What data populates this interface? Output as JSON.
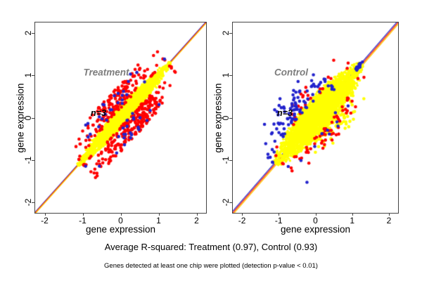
{
  "chart_data": {
    "type": "scatter",
    "caption": "Average R-squared: Treatment (0.97), Control (0.93)",
    "footnote": "Genes detected at least one chip were plotted (detection p-value < 0.01)",
    "colors": {
      "point_yellow": "#FFFF00",
      "point_red": "#FF0000",
      "point_blue": "#2222CC",
      "line_blue": "#3333CC",
      "line_red": "#FF2200",
      "line_yellow": "#FFC800",
      "axis": "#444444",
      "annotation_gray": "#7D7D7D"
    },
    "panels": [
      {
        "name": "Treatment",
        "annotation": "Treatment",
        "n_label": "n=3",
        "n_chips": 3,
        "r_squared": 0.97,
        "xlabel": "gene expression",
        "ylabel": "gene expression",
        "xlim": [
          -2.25,
          2.25
        ],
        "ylim": [
          -2.25,
          2.25
        ],
        "xticks": [
          -2,
          -1,
          0,
          1,
          2
        ],
        "yticks": [
          -2,
          -1,
          0,
          1,
          2
        ],
        "grid": false,
        "identity_lines": [
          {
            "color": "#3333CC",
            "offset": 0.018
          },
          {
            "color": "#FF2200",
            "offset": 0
          },
          {
            "color": "#FFC800",
            "offset": -0.018
          }
        ],
        "series": [
          {
            "name": "pairwise-core",
            "color": "#FFFF00",
            "n": 2600,
            "r": 1.8,
            "mode": "fill",
            "t_mean": 0.1,
            "t_sd": 0.52,
            "t_min": -1.12,
            "t_max": 1.3,
            "w_base": 0.2,
            "w_add": 0.012,
            "perp_cap": 0.45,
            "perp_shift": 0
          },
          {
            "name": "pairwise-outliers-red",
            "color": "#FF0000",
            "n": 430,
            "r": 2.3,
            "mode": "edge",
            "t_mean": 0.05,
            "t_sd": 0.5,
            "t_min": -1.05,
            "t_max": 1.27,
            "w_base": 0.2,
            "w_add": 0.012,
            "edge_gap": 0.75,
            "edge_spread": 0.3,
            "side_neg": 0.55,
            "perp_cap": 0.58,
            "perp_shift": 0
          },
          {
            "name": "pairwise-outliers-blue",
            "color": "#2222CC",
            "n": 50,
            "r": 2.3,
            "mode": "edge",
            "t_mean": 0.05,
            "t_sd": 0.5,
            "t_min": -1.05,
            "t_max": 1.27,
            "w_base": 0.2,
            "w_add": 0.012,
            "edge_gap": 0.7,
            "edge_spread": 0.35,
            "side_neg": 0.5,
            "perp_cap": 0.55,
            "perp_shift": 0
          }
        ]
      },
      {
        "name": "Control",
        "annotation": "Control",
        "n_label": "n=3",
        "n_chips": 3,
        "r_squared": 0.93,
        "xlabel": "gene expression",
        "ylabel": "gene expression",
        "xlim": [
          -2.25,
          2.25
        ],
        "ylim": [
          -2.25,
          2.25
        ],
        "xticks": [
          -2,
          -1,
          0,
          1,
          2
        ],
        "yticks": [
          -2,
          -1,
          0,
          1,
          2
        ],
        "grid": false,
        "identity_lines": [
          {
            "color": "#3333CC",
            "offset": 0.042
          },
          {
            "color": "#FF2200",
            "offset": 0
          },
          {
            "color": "#FFC800",
            "offset": -0.042
          }
        ],
        "series": [
          {
            "name": "pairwise-core",
            "color": "#FFFF00",
            "n": 4200,
            "r": 1.8,
            "mode": "fill",
            "t_mean": 0.1,
            "t_sd": 0.5,
            "t_min": -1.08,
            "t_max": 1.26,
            "w_base": 0.4,
            "w_add": 0.02,
            "perp_cap": 0.9,
            "perp_shift": 0
          },
          {
            "name": "strays-yellow-below",
            "color": "#FFFF00",
            "n": 90,
            "r": 2.3,
            "mode": "edge",
            "t_mean": 0.25,
            "t_sd": 0.35,
            "t_min": -0.5,
            "t_max": 0.9,
            "w_base": 0.4,
            "w_add": 0.02,
            "edge_gap": 0.85,
            "edge_spread": 0.22,
            "side_neg": 1.0,
            "perp_cap": 0.8,
            "perp_shift": 0
          },
          {
            "name": "pairwise-outliers-red",
            "color": "#FF0000",
            "n": 85,
            "r": 2.3,
            "mode": "edge",
            "t_mean": 0.0,
            "t_sd": 0.5,
            "t_min": -1.0,
            "t_max": 1.15,
            "w_base": 0.4,
            "w_add": 0.02,
            "edge_gap": 0.8,
            "edge_spread": 0.25,
            "side_neg": 0.72,
            "perp_cap": 0.75,
            "perp_shift": 0
          },
          {
            "name": "pairwise-outliers-blue",
            "color": "#2222CC",
            "n": 100,
            "r": 2.3,
            "mode": "edge",
            "t_mean": -0.3,
            "t_sd": 0.5,
            "t_min": -1.12,
            "t_max": 0.6,
            "w_base": 0.4,
            "w_add": 0.02,
            "edge_gap": 0.8,
            "edge_spread": 0.3,
            "side_neg": 0.12,
            "perp_cap": 0.95,
            "perp_shift": 0
          },
          {
            "name": "blue-far-strays",
            "color": "#2222CC",
            "n": 8,
            "r": 2.3,
            "mode": "edge",
            "t_mean": 0.1,
            "t_sd": 0.25,
            "t_min": -0.6,
            "t_max": 0.5,
            "w_base": 0.4,
            "w_add": 0.02,
            "edge_gap": 1.0,
            "edge_spread": 0.45,
            "side_neg": 0.0,
            "perp_cap": 1.0,
            "perp_shift": 0
          },
          {
            "name": "blue-tip-clump",
            "color": "#2222CC",
            "n": 22,
            "r": 2.2,
            "mode": "fill",
            "t_mean": 1.18,
            "t_sd": 0.05,
            "t_min": 1.05,
            "t_max": 1.3,
            "w_base": 0.0,
            "w_add": 0.05,
            "perp_cap": 0.12,
            "perp_shift": 0.03
          }
        ]
      }
    ]
  }
}
